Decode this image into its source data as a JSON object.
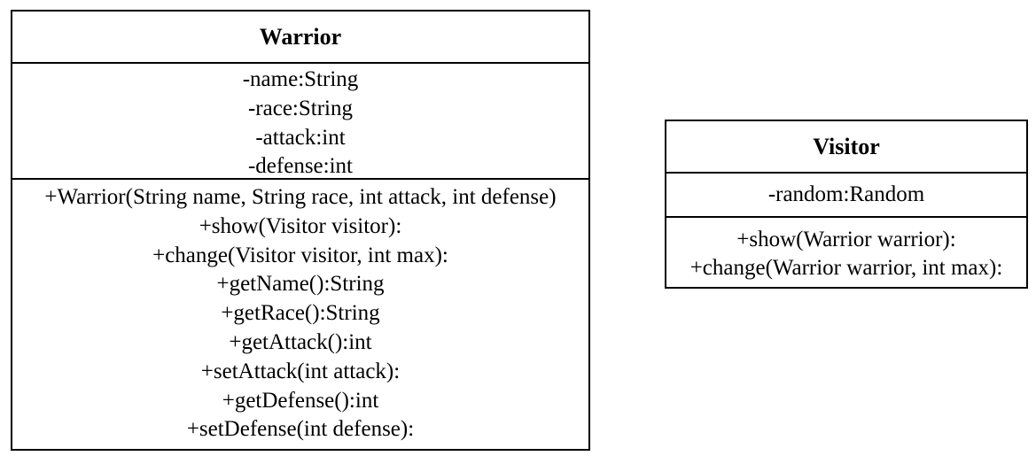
{
  "classes": {
    "warrior": {
      "name": "Warrior",
      "attributes": [
        "-name:String",
        "-race:String",
        "-attack:int",
        "-defense:int"
      ],
      "operations": [
        "+Warrior(String name, String race, int attack, int defense)",
        "+show(Visitor visitor):",
        "+change(Visitor visitor, int max):",
        "+getName():String",
        "+getRace():String",
        "+getAttack():int",
        "+setAttack(int attack):",
        "+getDefense():int",
        "+setDefense(int defense):"
      ]
    },
    "visitor": {
      "name": "Visitor",
      "attributes": [
        "-random:Random"
      ],
      "operations": [
        "+show(Warrior warrior):",
        "+change(Warrior warrior, int max):"
      ]
    }
  }
}
